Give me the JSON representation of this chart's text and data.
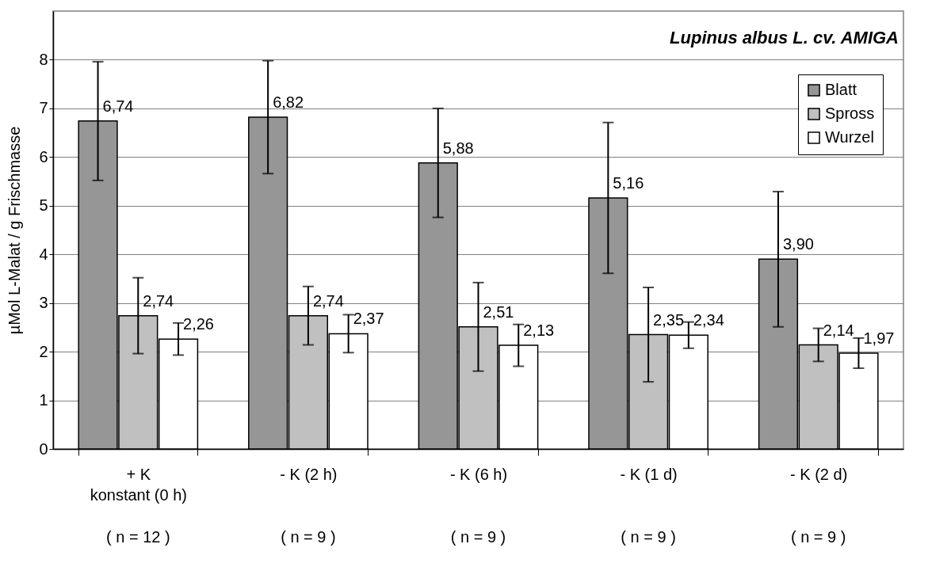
{
  "chart_data": {
    "type": "bar",
    "title": "Lupinus albus L. cv. AMIGA",
    "ylabel": "µMol L-Malat / g Frischmasse",
    "categories": [
      "+ K\nkonstant (0 h)",
      "- K (2 h)",
      "- K (6 h)",
      "- K (1 d)",
      "- K (2 d)"
    ],
    "series": [
      {
        "name": "Blatt",
        "color": "#969696",
        "values": [
          6.74,
          6.82,
          5.88,
          5.16,
          3.9
        ],
        "value_labels": [
          "6,74",
          "6,82",
          "5,88",
          "5,16",
          "3,90"
        ],
        "errors": [
          1.22,
          1.16,
          1.12,
          1.55,
          1.39
        ]
      },
      {
        "name": "Spross",
        "color": "#c0c0c0",
        "values": [
          2.74,
          2.74,
          2.51,
          2.35,
          2.14
        ],
        "value_labels": [
          "2,74",
          "2,74",
          "2,51",
          "2,35",
          "2,14"
        ],
        "errors": [
          0.78,
          0.6,
          0.91,
          0.97,
          0.34
        ]
      },
      {
        "name": "Wurzel",
        "color": "#ffffff",
        "values": [
          2.26,
          2.37,
          2.13,
          2.34,
          1.97
        ],
        "value_labels": [
          "2,26",
          "2,37",
          "2,13",
          "2,34",
          "1,97"
        ],
        "errors": [
          0.33,
          0.39,
          0.43,
          0.27,
          0.31
        ]
      }
    ],
    "annotations": [
      "( n = 12 )",
      "( n = 9 )",
      "( n = 9 )",
      "( n = 9 )",
      "( n = 9 )"
    ],
    "ylim": [
      0,
      9
    ],
    "yticks": [
      0,
      1,
      2,
      3,
      4,
      5,
      6,
      7,
      8
    ],
    "grid": "y",
    "legend": "top right"
  }
}
